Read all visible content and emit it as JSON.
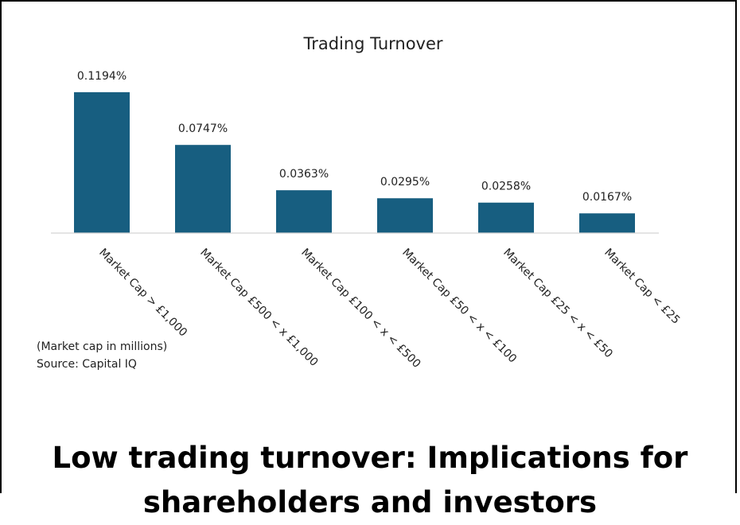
{
  "chart_data": {
    "type": "bar",
    "title": "Trading Turnover",
    "categories": [
      "Market Cap > £1,000",
      "Market Cap £500 < x £1,000",
      "Market Cap £100 < x < £500",
      "Market Cap £50 < x < £100",
      "Market Cap £25 < x < £50",
      "Market Cap < £25"
    ],
    "values": [
      0.1194,
      0.0747,
      0.0363,
      0.0295,
      0.0258,
      0.0167
    ],
    "data_labels": [
      "0.1194%",
      "0.0747%",
      "0.0363%",
      "0.0295%",
      "0.0258%",
      "0.0167%"
    ],
    "xlabel": "",
    "ylabel": "",
    "ylim": [
      0,
      0.12
    ],
    "grid": false,
    "legend": "none",
    "bar_color": "#175e80"
  },
  "notes": {
    "unit_note": "(Market cap in millions)",
    "source": "Source: Capital IQ"
  },
  "headline": {
    "line1": "Low trading turnover: Implications for",
    "line2": "shareholders and investors"
  }
}
